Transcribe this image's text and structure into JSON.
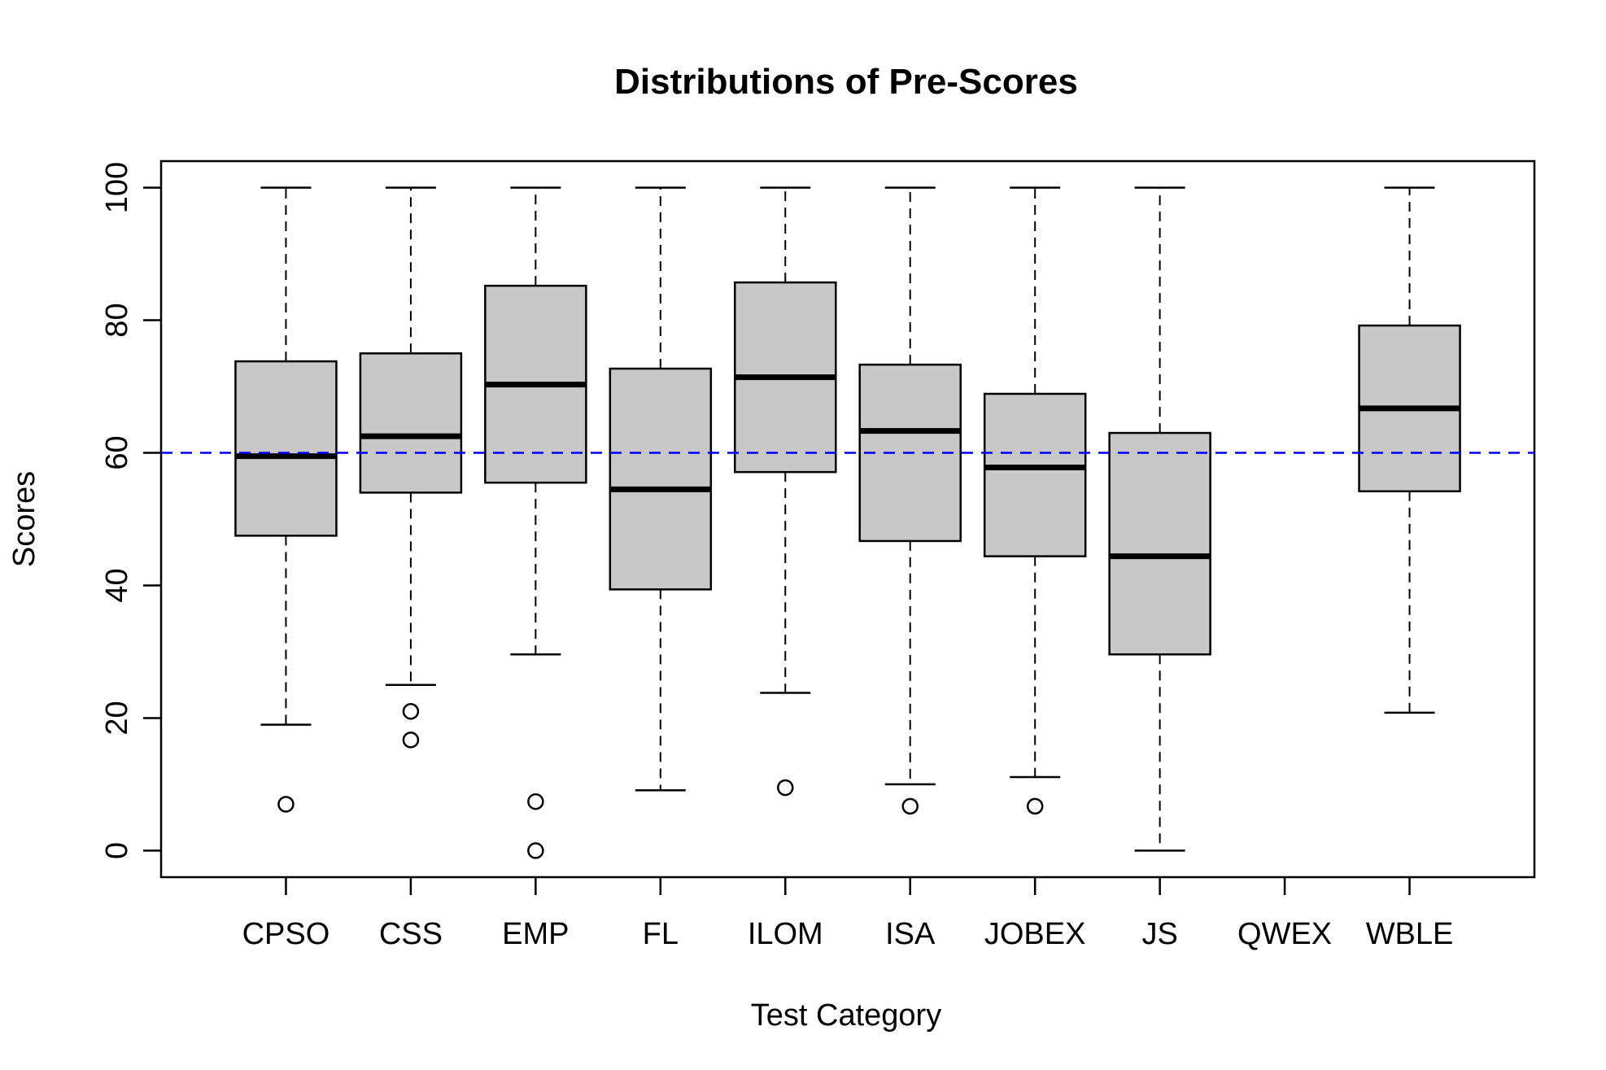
{
  "chart_data": {
    "type": "boxplot",
    "title": "Distributions of Pre-Scores",
    "xlabel": "Test Category",
    "ylabel": "Scores",
    "ylim": [
      -4,
      104
    ],
    "yticks": [
      0,
      20,
      40,
      60,
      80,
      100
    ],
    "reference_line": {
      "y": 60,
      "color": "#0000ff",
      "style": "dashed"
    },
    "box_fill": "#c8c8c8",
    "categories": [
      "CPSO",
      "CSS",
      "EMP",
      "FL",
      "ILOM",
      "ISA",
      "JOBEX",
      "JS",
      "QWEX",
      "WBLE"
    ],
    "boxes": [
      {
        "name": "CPSO",
        "whisker_low": 19,
        "q1": 47.5,
        "median": 59.5,
        "q3": 73.8,
        "whisker_high": 100,
        "outliers": [
          7
        ]
      },
      {
        "name": "CSS",
        "whisker_low": 25,
        "q1": 54,
        "median": 62.5,
        "q3": 75,
        "whisker_high": 100,
        "outliers": [
          21,
          16.7
        ]
      },
      {
        "name": "EMP",
        "whisker_low": 29.6,
        "q1": 55.5,
        "median": 70.3,
        "q3": 85.2,
        "whisker_high": 100,
        "outliers": [
          7.4,
          0
        ]
      },
      {
        "name": "FL",
        "whisker_low": 9.1,
        "q1": 39.4,
        "median": 54.5,
        "q3": 72.7,
        "whisker_high": 100,
        "outliers": []
      },
      {
        "name": "ILOM",
        "whisker_low": 23.8,
        "q1": 57.1,
        "median": 71.4,
        "q3": 85.7,
        "whisker_high": 100,
        "outliers": [
          9.5
        ]
      },
      {
        "name": "ISA",
        "whisker_low": 10,
        "q1": 46.7,
        "median": 63.3,
        "q3": 73.3,
        "whisker_high": 100,
        "outliers": [
          6.7
        ]
      },
      {
        "name": "JOBEX",
        "whisker_low": 11.1,
        "q1": 44.4,
        "median": 57.8,
        "q3": 68.9,
        "whisker_high": 100,
        "outliers": [
          6.7
        ]
      },
      {
        "name": "JS",
        "whisker_low": 0,
        "q1": 29.6,
        "median": 44.4,
        "q3": 63,
        "whisker_high": 100,
        "outliers": []
      },
      {
        "name": "QWEX",
        "empty": true
      },
      {
        "name": "WBLE",
        "whisker_low": 20.8,
        "q1": 54.2,
        "median": 66.7,
        "q3": 79.2,
        "whisker_high": 100,
        "outliers": []
      }
    ]
  }
}
